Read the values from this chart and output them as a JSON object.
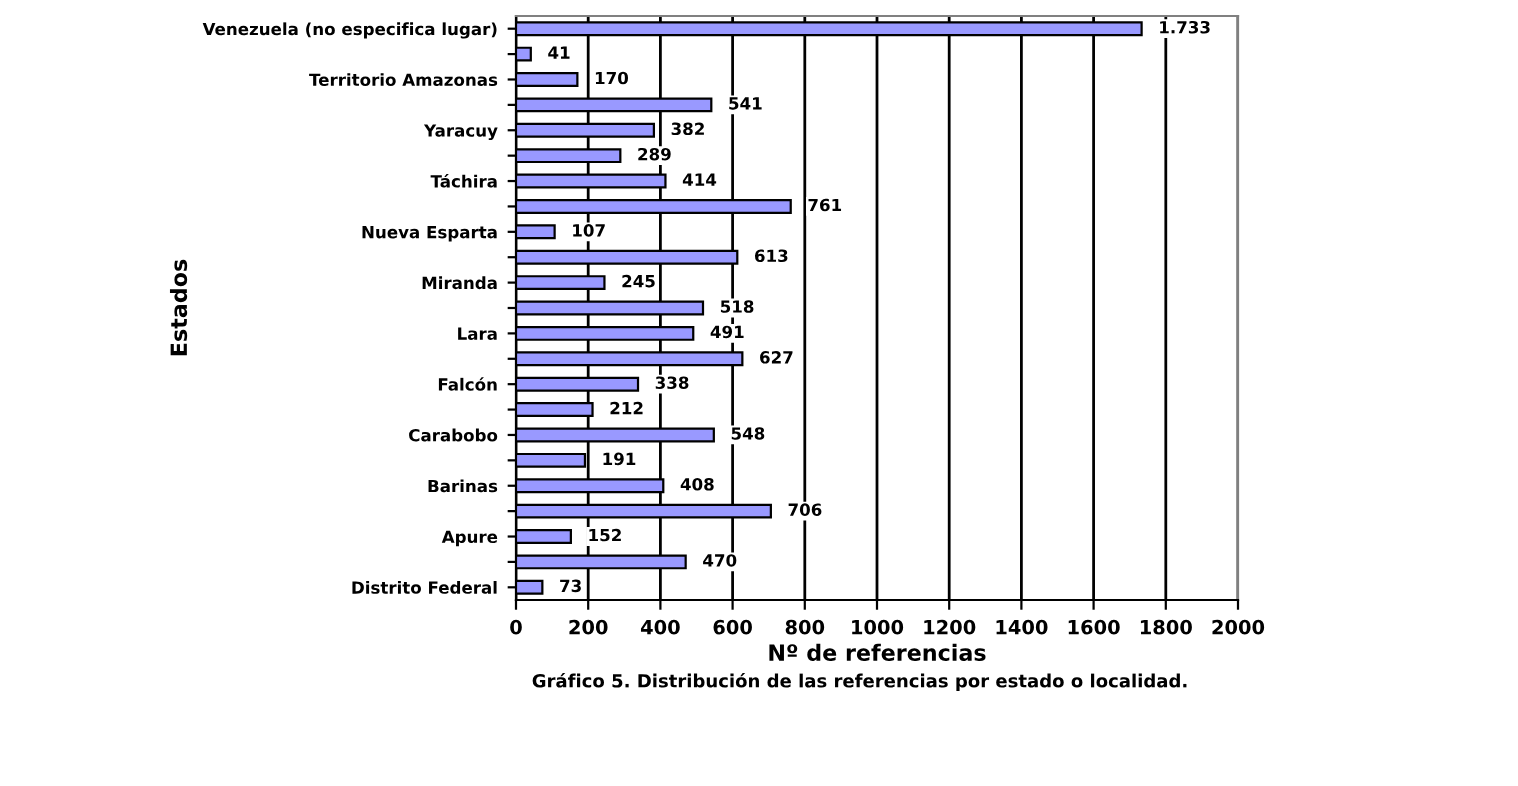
{
  "chart_data": {
    "type": "bar",
    "orientation": "horizontal",
    "categories": [
      "Venezuela (no especifica lugar)",
      null,
      "Territorio Amazonas",
      null,
      "Yaracuy",
      null,
      "Táchira",
      null,
      "Nueva Esparta",
      null,
      "Miranda",
      null,
      "Lara",
      null,
      "Falcón",
      null,
      "Carabobo",
      null,
      "Barinas",
      null,
      "Apure",
      null,
      "Distrito Federal"
    ],
    "values": [
      1733,
      41,
      170,
      541,
      382,
      289,
      414,
      761,
      107,
      613,
      245,
      518,
      491,
      627,
      338,
      212,
      548,
      191,
      408,
      706,
      152,
      470,
      73
    ],
    "value_labels": [
      "1.733",
      "41",
      "170",
      "541",
      "382",
      "289",
      "414",
      "761",
      "107",
      "613",
      "245",
      "518",
      "491",
      "627",
      "338",
      "212",
      "548",
      "191",
      "408",
      "706",
      "152",
      "470",
      "73"
    ],
    "color": "#9999ff",
    "xlim": [
      0,
      2000
    ],
    "xticks": [
      0,
      200,
      400,
      600,
      800,
      1000,
      1200,
      1400,
      1600,
      1800,
      2000
    ],
    "grid": "x",
    "legend": false,
    "xlabel": "Nº de referencias",
    "ylabel": "Estados",
    "annotations": [
      "Gráfico 5. Distribución de las referencias por estado o localidad."
    ]
  }
}
